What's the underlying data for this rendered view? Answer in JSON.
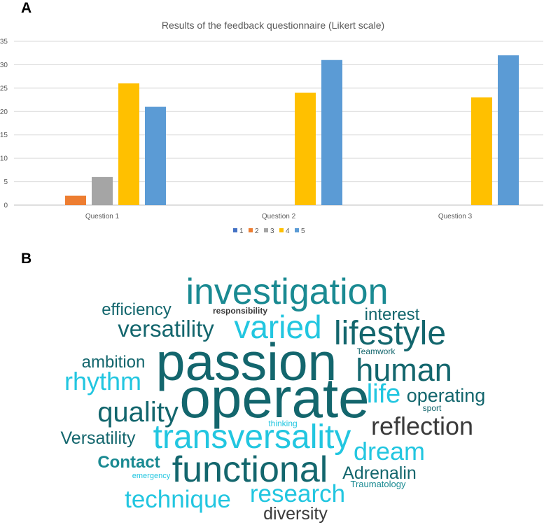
{
  "panels": {
    "a": "A",
    "b": "B"
  },
  "chart_data": {
    "type": "bar",
    "title": "Results of the feedback questionnaire (Likert scale)",
    "categories": [
      "Question 1",
      "Question  2",
      "Question  3"
    ],
    "ylim": [
      0,
      35
    ],
    "yticks": [
      0,
      5,
      10,
      15,
      20,
      25,
      30,
      35
    ],
    "grid": true,
    "legend_position": "bottom",
    "series": [
      {
        "name": "1",
        "color": "#4472c4",
        "values": [
          0,
          0,
          0
        ]
      },
      {
        "name": "2",
        "color": "#ed7d31",
        "values": [
          2,
          0,
          0
        ]
      },
      {
        "name": "3",
        "color": "#a5a5a5",
        "values": [
          6,
          0,
          0
        ]
      },
      {
        "name": "4",
        "color": "#ffc000",
        "values": [
          26,
          24,
          23
        ]
      },
      {
        "name": "5",
        "color": "#5b9bd5",
        "values": [
          21,
          31,
          32
        ]
      }
    ]
  },
  "word_cloud": {
    "words": [
      {
        "text": "investigation",
        "color": "#1a8a92",
        "weight": 9
      },
      {
        "text": "efficiency",
        "color": "#13666d",
        "weight": 5
      },
      {
        "text": "responsibility",
        "color": "#3a3a3a",
        "weight": 2
      },
      {
        "text": "interest",
        "color": "#13666d",
        "weight": 5
      },
      {
        "text": "versatility",
        "color": "#13666d",
        "weight": 7
      },
      {
        "text": "varied",
        "color": "#22c6e0",
        "weight": 8
      },
      {
        "text": "lifestyle",
        "color": "#13666d",
        "weight": 8
      },
      {
        "text": "Teamwork",
        "color": "#13666d",
        "weight": 2
      },
      {
        "text": "ambition",
        "color": "#13666d",
        "weight": 5
      },
      {
        "text": "passion",
        "color": "#13666d",
        "weight": 10
      },
      {
        "text": "human",
        "color": "#13666d",
        "weight": 8
      },
      {
        "text": "rhythm",
        "color": "#22c6e0",
        "weight": 7
      },
      {
        "text": "operate",
        "color": "#13666d",
        "weight": 10
      },
      {
        "text": "life",
        "color": "#22c6e0",
        "weight": 7
      },
      {
        "text": "operating",
        "color": "#13666d",
        "weight": 5
      },
      {
        "text": "sport",
        "color": "#13666d",
        "weight": 2
      },
      {
        "text": "quality",
        "color": "#13666d",
        "weight": 7
      },
      {
        "text": "reflection",
        "color": "#3a3a3a",
        "weight": 7
      },
      {
        "text": "thinking",
        "color": "#22c6e0",
        "weight": 2
      },
      {
        "text": "Versatility",
        "color": "#13666d",
        "weight": 5
      },
      {
        "text": "transversality",
        "color": "#22c6e0",
        "weight": 9
      },
      {
        "text": "dream",
        "color": "#22c6e0",
        "weight": 7
      },
      {
        "text": "Contact",
        "color": "#1a8a92",
        "weight": 5
      },
      {
        "text": "functional",
        "color": "#13666d",
        "weight": 9
      },
      {
        "text": "Adrenalin",
        "color": "#13666d",
        "weight": 5
      },
      {
        "text": "emergency",
        "color": "#22c6e0",
        "weight": 2
      },
      {
        "text": "Traumatology",
        "color": "#1a8a92",
        "weight": 2
      },
      {
        "text": "technique",
        "color": "#22c6e0",
        "weight": 7
      },
      {
        "text": "research",
        "color": "#22c6e0",
        "weight": 7
      },
      {
        "text": "diversity",
        "color": "#3a3a3a",
        "weight": 5
      }
    ]
  }
}
